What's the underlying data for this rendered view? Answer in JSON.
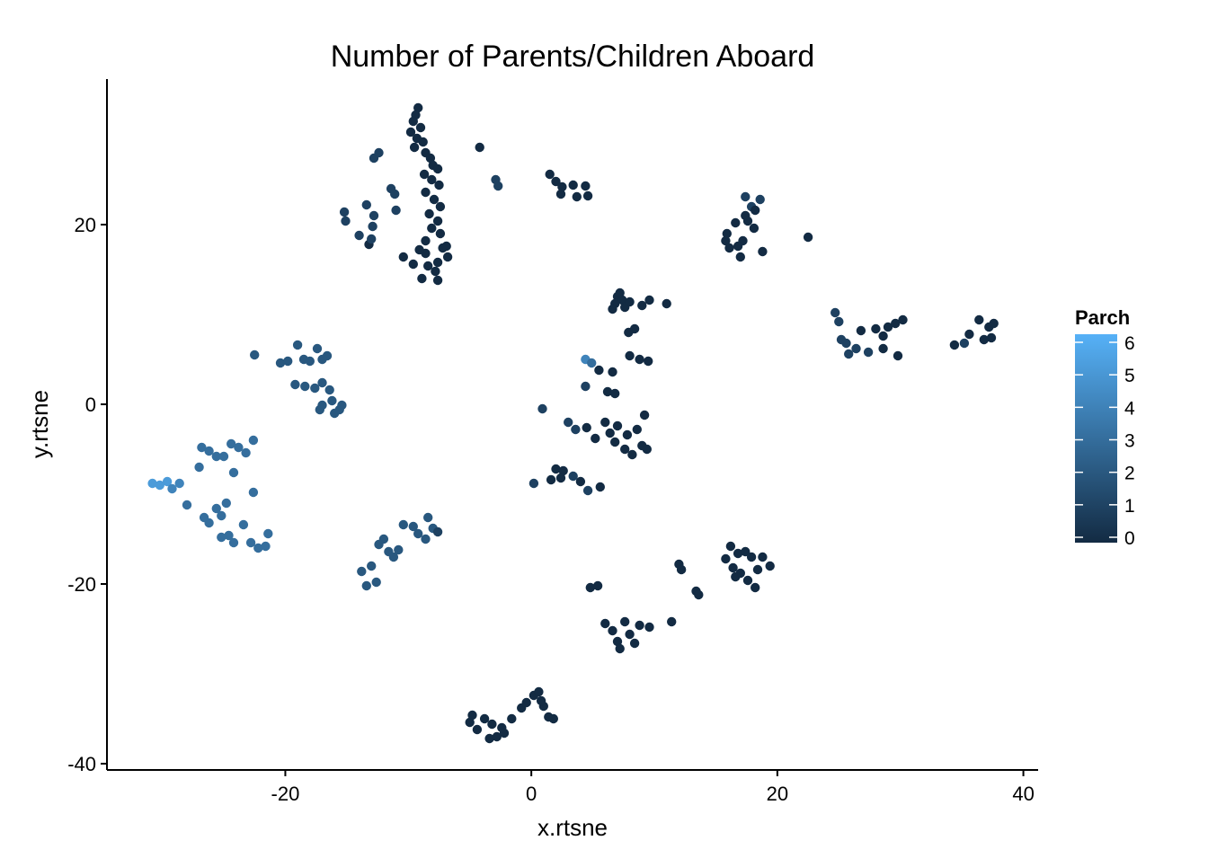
{
  "chart_data": {
    "type": "scatter",
    "title": "Number of Parents/Children Aboard",
    "xlabel": "x.rtsne",
    "ylabel": "y.rtsne",
    "xlim": [
      -34.5,
      41.2
    ],
    "ylim": [
      -40.7,
      36.2
    ],
    "x_ticks": [
      -20,
      0,
      20,
      40
    ],
    "y_ticks": [
      -40,
      -20,
      0,
      20
    ],
    "x_tick_labels": [
      "-20",
      "0",
      "20",
      "40"
    ],
    "y_tick_labels": [
      "-40",
      "-20",
      "0",
      "20"
    ],
    "grid": false,
    "legend": {
      "title": "Parch",
      "position": "right",
      "min": 0,
      "max": 6,
      "ticks": [
        0,
        1,
        2,
        3,
        4,
        5,
        6
      ],
      "tick_labels": [
        "0",
        "1",
        "2",
        "3",
        "4",
        "5",
        "6"
      ],
      "color_low": "#132B43",
      "color_high": "#56B1F7"
    },
    "color_variable": "Parch",
    "points": [
      [
        -9.2,
        33.0,
        0
      ],
      [
        -9.4,
        32.2,
        0
      ],
      [
        -9.6,
        31.5,
        0
      ],
      [
        -9.0,
        30.8,
        0
      ],
      [
        -9.8,
        30.3,
        0
      ],
      [
        -9.3,
        29.6,
        0
      ],
      [
        -8.8,
        29.2,
        0
      ],
      [
        -9.5,
        28.6,
        0
      ],
      [
        -8.6,
        28.0,
        0
      ],
      [
        -8.2,
        27.4,
        0
      ],
      [
        -8.0,
        26.6,
        0
      ],
      [
        -7.6,
        26.2,
        0
      ],
      [
        -8.7,
        25.6,
        0
      ],
      [
        -8.1,
        25.0,
        0
      ],
      [
        -7.5,
        24.4,
        0
      ],
      [
        -8.6,
        23.6,
        0
      ],
      [
        -7.9,
        22.8,
        0
      ],
      [
        -7.4,
        22.0,
        0
      ],
      [
        -8.3,
        21.2,
        0
      ],
      [
        -7.6,
        20.4,
        0
      ],
      [
        -8.1,
        19.6,
        0
      ],
      [
        -7.4,
        19.0,
        0
      ],
      [
        -8.6,
        18.2,
        0
      ],
      [
        -7.2,
        17.4,
        0
      ],
      [
        -6.8,
        16.4,
        0
      ],
      [
        -7.6,
        15.8,
        0
      ],
      [
        -8.4,
        15.4,
        0
      ],
      [
        -7.8,
        14.8,
        0
      ],
      [
        -8.9,
        14.0,
        0
      ],
      [
        -7.6,
        13.8,
        0
      ],
      [
        -9.6,
        15.6,
        0
      ],
      [
        -10.4,
        16.4,
        0
      ],
      [
        -8.6,
        16.8,
        0
      ],
      [
        -9.1,
        17.2,
        0
      ],
      [
        -6.9,
        17.6,
        0
      ],
      [
        -12.8,
        27.4,
        1
      ],
      [
        -12.4,
        28.0,
        1
      ],
      [
        -13.4,
        22.2,
        1
      ],
      [
        -12.8,
        21.0,
        1
      ],
      [
        -12.9,
        19.8,
        1
      ],
      [
        -15.2,
        21.4,
        1
      ],
      [
        -15.1,
        20.4,
        1
      ],
      [
        -11.4,
        24.0,
        1
      ],
      [
        -11.0,
        21.6,
        1
      ],
      [
        -11.1,
        23.4,
        1
      ],
      [
        -14.0,
        18.8,
        1
      ],
      [
        -13.2,
        17.8,
        0
      ],
      [
        -13.0,
        18.4,
        1
      ],
      [
        -4.2,
        28.6,
        0
      ],
      [
        -2.9,
        25.0,
        1
      ],
      [
        -2.7,
        24.3,
        1
      ],
      [
        1.5,
        25.6,
        0
      ],
      [
        2.0,
        24.8,
        0
      ],
      [
        2.5,
        24.2,
        0
      ],
      [
        3.4,
        24.4,
        0
      ],
      [
        4.4,
        24.3,
        0
      ],
      [
        2.4,
        23.4,
        0
      ],
      [
        3.7,
        23.1,
        0
      ],
      [
        4.6,
        23.2,
        0
      ],
      [
        15.8,
        18.2,
        0
      ],
      [
        16.1,
        17.4,
        0
      ],
      [
        15.9,
        19.0,
        0
      ],
      [
        16.6,
        20.2,
        0
      ],
      [
        17.4,
        21.0,
        0
      ],
      [
        17.9,
        22.0,
        1
      ],
      [
        18.6,
        22.8,
        1
      ],
      [
        18.2,
        21.6,
        0
      ],
      [
        17.6,
        20.4,
        0
      ],
      [
        17.2,
        18.2,
        0
      ],
      [
        16.8,
        17.6,
        0
      ],
      [
        17.0,
        16.4,
        0
      ],
      [
        18.8,
        17.0,
        0
      ],
      [
        18.1,
        19.6,
        0
      ],
      [
        17.4,
        23.1,
        1
      ],
      [
        22.5,
        18.6,
        0
      ],
      [
        25.0,
        9.2,
        1
      ],
      [
        24.7,
        10.2,
        1
      ],
      [
        25.2,
        7.2,
        1
      ],
      [
        25.6,
        6.8,
        1
      ],
      [
        25.8,
        5.6,
        1
      ],
      [
        26.4,
        6.2,
        1
      ],
      [
        26.8,
        8.2,
        0
      ],
      [
        27.4,
        5.8,
        1
      ],
      [
        28.0,
        8.4,
        0
      ],
      [
        28.6,
        7.6,
        0
      ],
      [
        29.0,
        8.6,
        0
      ],
      [
        29.6,
        9.0,
        0
      ],
      [
        30.2,
        9.4,
        0
      ],
      [
        29.8,
        5.4,
        0
      ],
      [
        28.6,
        6.2,
        0
      ],
      [
        34.4,
        6.6,
        0
      ],
      [
        35.2,
        6.8,
        1
      ],
      [
        35.6,
        7.8,
        0
      ],
      [
        36.4,
        9.4,
        0
      ],
      [
        37.2,
        8.6,
        0
      ],
      [
        37.6,
        9.0,
        0
      ],
      [
        37.4,
        7.4,
        0
      ],
      [
        36.8,
        7.2,
        0
      ],
      [
        7.0,
        12.0,
        0
      ],
      [
        7.4,
        11.6,
        0
      ],
      [
        6.8,
        11.2,
        0
      ],
      [
        7.6,
        10.8,
        0
      ],
      [
        8.0,
        11.4,
        0
      ],
      [
        7.2,
        12.4,
        0
      ],
      [
        6.6,
        10.6,
        0
      ],
      [
        9.0,
        11.0,
        0
      ],
      [
        9.6,
        11.6,
        0
      ],
      [
        11.0,
        11.2,
        0
      ],
      [
        8.4,
        8.4,
        0
      ],
      [
        7.9,
        8.0,
        0
      ],
      [
        4.4,
        5.0,
        4
      ],
      [
        4.9,
        4.6,
        3
      ],
      [
        5.5,
        3.8,
        0
      ],
      [
        6.6,
        3.6,
        0
      ],
      [
        8.0,
        5.4,
        0
      ],
      [
        8.8,
        5.0,
        0
      ],
      [
        9.5,
        4.8,
        0
      ],
      [
        4.4,
        2.0,
        1
      ],
      [
        6.2,
        1.4,
        0
      ],
      [
        6.8,
        1.2,
        0
      ],
      [
        0.9,
        -0.5,
        1
      ],
      [
        3.0,
        -2.0,
        1
      ],
      [
        3.6,
        -2.8,
        1
      ],
      [
        4.5,
        -2.6,
        0
      ],
      [
        5.2,
        -3.8,
        0
      ],
      [
        6.0,
        -2.0,
        0
      ],
      [
        6.4,
        -3.2,
        0
      ],
      [
        7.0,
        -2.4,
        0
      ],
      [
        7.8,
        -3.4,
        0
      ],
      [
        8.6,
        -2.8,
        0
      ],
      [
        9.2,
        -1.2,
        0
      ],
      [
        9.0,
        -4.6,
        0
      ],
      [
        9.4,
        -5.0,
        0
      ],
      [
        7.6,
        -5.0,
        0
      ],
      [
        8.2,
        -5.6,
        0
      ],
      [
        6.8,
        -4.2,
        0
      ],
      [
        2.0,
        -7.2,
        0
      ],
      [
        2.6,
        -7.4,
        0
      ],
      [
        1.6,
        -8.4,
        0
      ],
      [
        2.4,
        -8.2,
        0
      ],
      [
        3.4,
        -8.0,
        1
      ],
      [
        4.0,
        -8.6,
        0
      ],
      [
        4.6,
        -9.6,
        1
      ],
      [
        5.6,
        -9.2,
        0
      ],
      [
        0.2,
        -8.8,
        1
      ],
      [
        -22.5,
        5.5,
        2
      ],
      [
        -20.4,
        4.6,
        2
      ],
      [
        -19.8,
        4.8,
        2
      ],
      [
        -19.0,
        6.6,
        2
      ],
      [
        -18.5,
        5.0,
        2
      ],
      [
        -18.0,
        4.8,
        2
      ],
      [
        -17.4,
        6.2,
        2
      ],
      [
        -17.0,
        5.0,
        2
      ],
      [
        -16.6,
        5.4,
        2
      ],
      [
        -19.2,
        2.2,
        2
      ],
      [
        -18.4,
        2.0,
        2
      ],
      [
        -17.6,
        1.8,
        2
      ],
      [
        -17.0,
        2.4,
        2
      ],
      [
        -16.4,
        1.6,
        2
      ],
      [
        -16.2,
        0.4,
        2
      ],
      [
        -17.2,
        -0.6,
        2
      ],
      [
        -16.0,
        -1.0,
        2
      ],
      [
        -15.6,
        -0.6,
        2
      ],
      [
        -15.4,
        -0.1,
        2
      ],
      [
        -17.0,
        -0.1,
        2
      ],
      [
        -30.8,
        -8.8,
        5
      ],
      [
        -30.2,
        -9.0,
        5
      ],
      [
        -29.6,
        -8.6,
        5
      ],
      [
        -29.2,
        -9.4,
        4
      ],
      [
        -28.6,
        -8.8,
        4
      ],
      [
        -28.0,
        -11.2,
        3
      ],
      [
        -27.0,
        -7.0,
        3
      ],
      [
        -26.8,
        -4.8,
        3
      ],
      [
        -26.2,
        -5.2,
        3
      ],
      [
        -25.6,
        -5.8,
        3
      ],
      [
        -25.0,
        -5.8,
        3
      ],
      [
        -24.4,
        -4.4,
        3
      ],
      [
        -23.8,
        -4.8,
        3
      ],
      [
        -22.6,
        -4.0,
        3
      ],
      [
        -23.2,
        -5.4,
        3
      ],
      [
        -24.2,
        -7.6,
        3
      ],
      [
        -22.6,
        -9.8,
        3
      ],
      [
        -25.6,
        -11.6,
        3
      ],
      [
        -26.2,
        -13.2,
        3
      ],
      [
        -25.2,
        -12.4,
        3
      ],
      [
        -24.6,
        -14.6,
        3
      ],
      [
        -24.2,
        -15.4,
        3
      ],
      [
        -23.4,
        -13.4,
        3
      ],
      [
        -22.8,
        -15.4,
        3
      ],
      [
        -22.2,
        -16.0,
        3
      ],
      [
        -21.4,
        -14.4,
        3
      ],
      [
        -21.6,
        -15.8,
        3
      ],
      [
        -26.6,
        -12.6,
        3
      ],
      [
        -24.8,
        -11.0,
        3
      ],
      [
        -25.2,
        -14.8,
        3
      ],
      [
        -13.8,
        -18.6,
        2
      ],
      [
        -13.0,
        -18.0,
        2
      ],
      [
        -13.4,
        -20.2,
        2
      ],
      [
        -12.6,
        -19.8,
        2
      ],
      [
        -12.4,
        -15.6,
        2
      ],
      [
        -12.0,
        -15.0,
        2
      ],
      [
        -11.6,
        -16.4,
        2
      ],
      [
        -11.2,
        -17.0,
        2
      ],
      [
        -10.8,
        -16.2,
        2
      ],
      [
        -10.4,
        -13.4,
        2
      ],
      [
        -9.6,
        -13.6,
        2
      ],
      [
        -9.2,
        -14.4,
        2
      ],
      [
        -8.6,
        -15.0,
        2
      ],
      [
        -8.0,
        -13.8,
        2
      ],
      [
        -8.4,
        -12.6,
        2
      ],
      [
        -7.6,
        -14.2,
        1
      ],
      [
        4.8,
        -20.4,
        0
      ],
      [
        5.4,
        -20.2,
        0
      ],
      [
        12.0,
        -17.8,
        0
      ],
      [
        12.2,
        -18.4,
        0
      ],
      [
        13.4,
        -20.8,
        0
      ],
      [
        13.6,
        -21.2,
        0
      ],
      [
        16.2,
        -15.8,
        0
      ],
      [
        16.8,
        -16.6,
        0
      ],
      [
        15.8,
        -17.2,
        0
      ],
      [
        16.4,
        -18.2,
        0
      ],
      [
        17.0,
        -18.8,
        0
      ],
      [
        17.6,
        -19.6,
        0
      ],
      [
        18.2,
        -20.4,
        0
      ],
      [
        18.8,
        -17.0,
        0
      ],
      [
        19.4,
        -18.0,
        0
      ],
      [
        17.4,
        -16.4,
        0
      ],
      [
        16.6,
        -19.2,
        0
      ],
      [
        18.4,
        -18.4,
        0
      ],
      [
        17.9,
        -17.0,
        0
      ],
      [
        6.0,
        -24.4,
        0
      ],
      [
        6.6,
        -25.2,
        0
      ],
      [
        7.0,
        -26.4,
        0
      ],
      [
        7.6,
        -24.2,
        0
      ],
      [
        8.0,
        -25.6,
        0
      ],
      [
        8.4,
        -26.6,
        0
      ],
      [
        7.2,
        -27.2,
        0
      ],
      [
        8.8,
        -24.6,
        0
      ],
      [
        9.6,
        -24.8,
        0
      ],
      [
        11.4,
        -24.2,
        0
      ],
      [
        -5.0,
        -35.4,
        0
      ],
      [
        -4.4,
        -36.2,
        0
      ],
      [
        -3.8,
        -35.0,
        0
      ],
      [
        -3.4,
        -37.2,
        0
      ],
      [
        -2.8,
        -37.0,
        0
      ],
      [
        -2.2,
        -36.6,
        0
      ],
      [
        -4.8,
        -34.6,
        0
      ],
      [
        -3.2,
        -35.6,
        0
      ],
      [
        -1.6,
        -35.0,
        0
      ],
      [
        -0.8,
        -33.8,
        0
      ],
      [
        -0.4,
        -33.2,
        0
      ],
      [
        0.2,
        -32.4,
        0
      ],
      [
        0.6,
        -32.0,
        0
      ],
      [
        1.0,
        -33.6,
        0
      ],
      [
        1.4,
        -34.8,
        0
      ],
      [
        1.8,
        -35.0,
        0
      ],
      [
        -2.4,
        -36.0,
        0
      ],
      [
        0.8,
        -33.0,
        0
      ]
    ]
  }
}
